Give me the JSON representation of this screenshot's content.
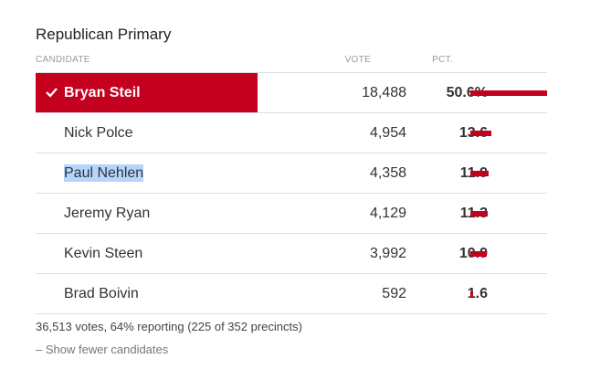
{
  "race": {
    "title": "Republican Primary",
    "headers": {
      "candidate": "CANDIDATE",
      "vote": "VOTE",
      "pct": "PCT."
    },
    "candidates": [
      {
        "name": "Bryan Steil",
        "votes": "18,488",
        "pct": "50.6%",
        "pct_value": 50.6,
        "winner": true,
        "highlighted": false
      },
      {
        "name": "Nick Polce",
        "votes": "4,954",
        "pct": "13.6",
        "pct_value": 13.6,
        "winner": false,
        "highlighted": false
      },
      {
        "name": "Paul Nehlen",
        "votes": "4,358",
        "pct": "11.9",
        "pct_value": 11.9,
        "winner": false,
        "highlighted": true
      },
      {
        "name": "Jeremy Ryan",
        "votes": "4,129",
        "pct": "11.3",
        "pct_value": 11.3,
        "winner": false,
        "highlighted": false
      },
      {
        "name": "Kevin Steen",
        "votes": "3,992",
        "pct": "10.9",
        "pct_value": 10.9,
        "winner": false,
        "highlighted": false
      },
      {
        "name": "Brad Boivin",
        "votes": "592",
        "pct": "1.6",
        "pct_value": 1.6,
        "winner": false,
        "highlighted": false
      }
    ],
    "summary": "36,513 votes, 64% reporting (225 of 352 precincts)",
    "toggle_label": "– Show fewer candidates"
  },
  "colors": {
    "accent": "#c5001e",
    "selection": "#b4d5fe"
  }
}
